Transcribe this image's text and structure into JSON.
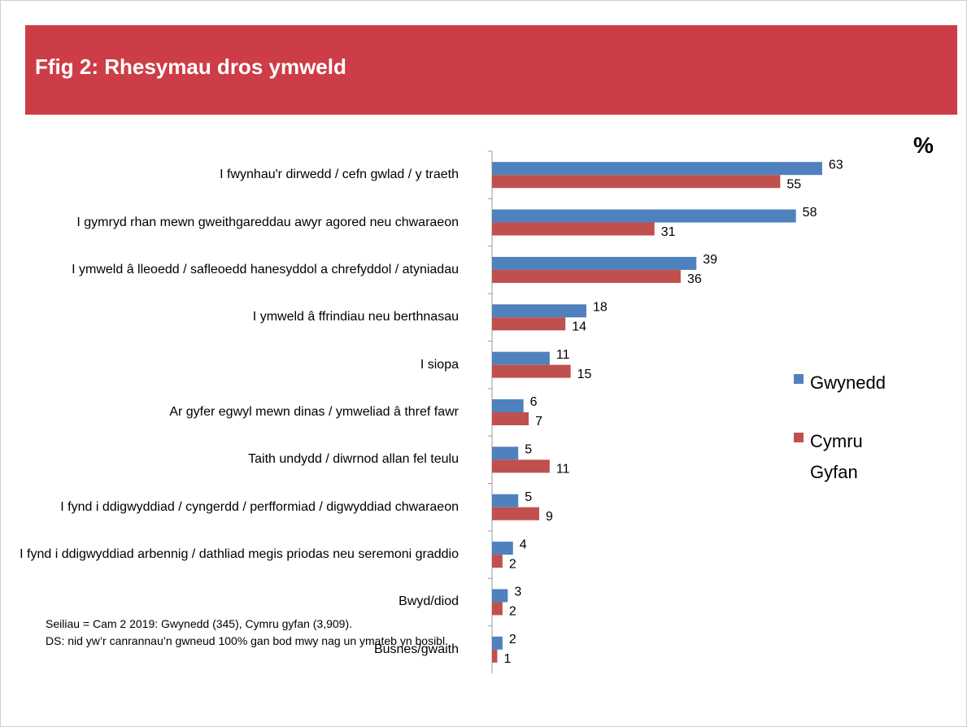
{
  "chart_data": {
    "type": "bar",
    "orientation": "horizontal",
    "title": "Ffig 2: Rhesymau dros ymweld",
    "unit_label": "%",
    "categories": [
      "I fwynhau'r dirwedd / cefn gwlad / y traeth",
      "I gymryd rhan mewn gweithgareddau awyr agored neu chwaraeon",
      "I ymweld â lleoedd / safleoedd hanesyddol a chrefyddol / atyniadau",
      "I ymweld â ffrindiau neu berthnasau",
      "I siopa",
      "Ar gyfer egwyl mewn dinas / ymweliad â thref fawr",
      "Taith undydd / diwrnod allan fel teulu",
      "I fynd i ddigwyddiad / cyngerdd / perfformiad / digwyddiad chwaraeon",
      "I fynd i ddigwyddiad arbennig / dathliad megis priodas neu seremoni graddio",
      "Bwyd/diod",
      "Busnes/gwaith"
    ],
    "series": [
      {
        "name": "Gwynedd",
        "color": "#4f81bd",
        "values": [
          63,
          58,
          39,
          18,
          11,
          6,
          5,
          5,
          4,
          3,
          2
        ]
      },
      {
        "name": "Cymru Gyfan",
        "color": "#c0504d",
        "values": [
          55,
          31,
          36,
          14,
          15,
          7,
          11,
          9,
          2,
          2,
          1
        ]
      }
    ],
    "xlim": [
      0,
      70
    ],
    "notes": [
      "Seiliau = Cam 2 2019: Gwynedd (345), Cymru gyfan (3,909).",
      "DS: nid yw’r canrannau’n gwneud 100% gan bod mwy nag un ymateb yn bosibl."
    ]
  }
}
